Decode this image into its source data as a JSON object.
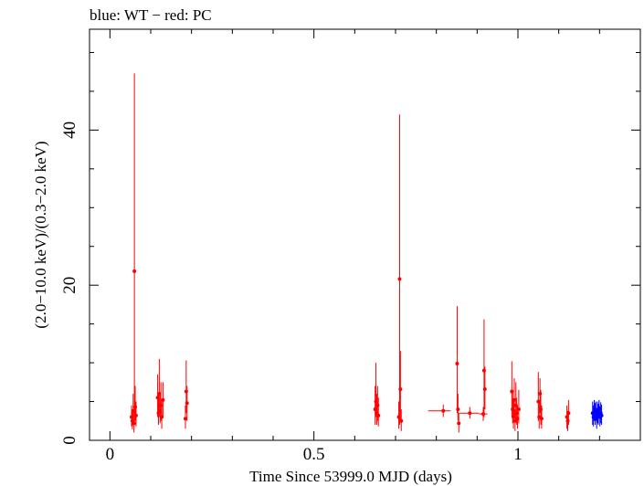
{
  "chart_data": {
    "type": "scatter",
    "title": "blue: WT − red: PC",
    "xlabel": "Time Since 53999.0 MJD (days)",
    "ylabel": "(2.0−10.0 keV)/(0.3−2.0 keV)",
    "xlim": [
      -0.05,
      1.3
    ],
    "ylim": [
      0,
      53
    ],
    "x_ticks": [
      {
        "value": 0,
        "label": "0"
      },
      {
        "value": 0.5,
        "label": "0.5"
      },
      {
        "value": 1,
        "label": "1"
      }
    ],
    "y_ticks": [
      {
        "value": 0,
        "label": "0"
      },
      {
        "value": 20,
        "label": "20"
      },
      {
        "value": 40,
        "label": "40"
      }
    ],
    "grid": false,
    "series": [
      {
        "mode": "PC",
        "color": "#ff0000",
        "points": [
          {
            "x": 0.053,
            "y": 3.0,
            "ylo": 1.8,
            "yhi": 4.5
          },
          {
            "x": 0.055,
            "y": 2.5,
            "ylo": 1.4,
            "yhi": 4.0
          },
          {
            "x": 0.057,
            "y": 3.8,
            "ylo": 2.0,
            "yhi": 6.0
          },
          {
            "x": 0.059,
            "y": 2.2,
            "ylo": 1.0,
            "yhi": 3.6
          },
          {
            "x": 0.06,
            "y": 21.8,
            "ylo": 2.0,
            "yhi": 47.3
          },
          {
            "x": 0.062,
            "y": 4.3,
            "ylo": 2.5,
            "yhi": 7.0
          },
          {
            "x": 0.064,
            "y": 3.2,
            "ylo": 1.8,
            "yhi": 5.0
          },
          {
            "x": 0.117,
            "y": 5.5,
            "ylo": 3.0,
            "yhi": 8.5
          },
          {
            "x": 0.119,
            "y": 3.5,
            "ylo": 2.0,
            "yhi": 6.0
          },
          {
            "x": 0.121,
            "y": 6.0,
            "ylo": 3.0,
            "yhi": 10.5
          },
          {
            "x": 0.123,
            "y": 3.8,
            "ylo": 2.2,
            "yhi": 6.0
          },
          {
            "x": 0.125,
            "y": 4.5,
            "ylo": 2.5,
            "yhi": 7.5
          },
          {
            "x": 0.127,
            "y": 3.0,
            "ylo": 1.5,
            "yhi": 5.0
          },
          {
            "x": 0.13,
            "y": 5.2,
            "ylo": 3.0,
            "yhi": 7.5
          },
          {
            "x": 0.185,
            "y": 2.8,
            "ylo": 1.5,
            "yhi": 4.5
          },
          {
            "x": 0.187,
            "y": 6.3,
            "ylo": 3.5,
            "yhi": 10.3
          },
          {
            "x": 0.189,
            "y": 4.8,
            "ylo": 2.5,
            "yhi": 7.0
          },
          {
            "x": 0.65,
            "y": 4.0,
            "ylo": 2.0,
            "yhi": 7.0
          },
          {
            "x": 0.652,
            "y": 5.0,
            "ylo": 3.0,
            "yhi": 10.0
          },
          {
            "x": 0.654,
            "y": 3.5,
            "ylo": 2.0,
            "yhi": 6.0
          },
          {
            "x": 0.656,
            "y": 4.5,
            "ylo": 2.5,
            "yhi": 7.0
          },
          {
            "x": 0.658,
            "y": 3.2,
            "ylo": 1.8,
            "yhi": 5.5
          },
          {
            "x": 0.708,
            "y": 3.0,
            "ylo": 1.5,
            "yhi": 5.0
          },
          {
            "x": 0.71,
            "y": 20.8,
            "ylo": 2.0,
            "yhi": 42.0
          },
          {
            "x": 0.712,
            "y": 6.6,
            "ylo": 2.5,
            "yhi": 11.5
          },
          {
            "x": 0.714,
            "y": 2.5,
            "ylo": 1.2,
            "yhi": 4.0
          },
          {
            "x": 0.817,
            "y": 3.8,
            "ylo": 3.0,
            "yhi": 4.6,
            "xlo": 0.78,
            "xhi": 0.835
          },
          {
            "x": 0.851,
            "y": 9.9,
            "ylo": 3.5,
            "yhi": 17.3
          },
          {
            "x": 0.853,
            "y": 4.0,
            "ylo": 2.5,
            "yhi": 6.0
          },
          {
            "x": 0.855,
            "y": 2.2,
            "ylo": 1.0,
            "yhi": 3.5
          },
          {
            "x": 0.882,
            "y": 3.5,
            "ylo": 2.8,
            "yhi": 4.3,
            "xlo": 0.855,
            "xhi": 0.905
          },
          {
            "x": 0.915,
            "y": 3.4,
            "ylo": 2.5,
            "yhi": 4.3,
            "xlo": 0.905,
            "xhi": 0.925
          },
          {
            "x": 0.917,
            "y": 9.0,
            "ylo": 3.0,
            "yhi": 15.6
          },
          {
            "x": 0.919,
            "y": 6.6,
            "ylo": 4.0,
            "yhi": 9.5
          },
          {
            "x": 0.985,
            "y": 6.3,
            "ylo": 3.0,
            "yhi": 10.2
          },
          {
            "x": 0.987,
            "y": 4.0,
            "ylo": 2.2,
            "yhi": 6.5
          },
          {
            "x": 0.989,
            "y": 3.0,
            "ylo": 1.5,
            "yhi": 5.0
          },
          {
            "x": 0.991,
            "y": 5.2,
            "ylo": 3.0,
            "yhi": 8.0
          },
          {
            "x": 0.993,
            "y": 2.5,
            "ylo": 1.2,
            "yhi": 4.0
          },
          {
            "x": 0.995,
            "y": 4.5,
            "ylo": 2.5,
            "yhi": 7.5
          },
          {
            "x": 0.997,
            "y": 3.5,
            "ylo": 2.0,
            "yhi": 5.5
          },
          {
            "x": 0.999,
            "y": 2.8,
            "ylo": 1.5,
            "yhi": 4.5
          },
          {
            "x": 1.002,
            "y": 4.0,
            "ylo": 2.2,
            "yhi": 6.5
          },
          {
            "x": 1.05,
            "y": 5.0,
            "ylo": 2.5,
            "yhi": 8.8
          },
          {
            "x": 1.052,
            "y": 3.0,
            "ylo": 1.5,
            "yhi": 5.0
          },
          {
            "x": 1.054,
            "y": 6.0,
            "ylo": 3.5,
            "yhi": 8.0
          },
          {
            "x": 1.056,
            "y": 4.0,
            "ylo": 2.0,
            "yhi": 6.5
          },
          {
            "x": 1.058,
            "y": 2.8,
            "ylo": 1.5,
            "yhi": 4.5
          },
          {
            "x": 1.12,
            "y": 3.0,
            "ylo": 1.5,
            "yhi": 4.5
          },
          {
            "x": 1.122,
            "y": 2.5,
            "ylo": 1.2,
            "yhi": 3.8
          },
          {
            "x": 1.124,
            "y": 3.5,
            "ylo": 2.0,
            "yhi": 5.2
          }
        ]
      },
      {
        "mode": "WT",
        "color": "#0000ff",
        "points": [
          {
            "x": 1.183,
            "y": 3.5,
            "ylo": 2.0,
            "yhi": 5.0
          },
          {
            "x": 1.185,
            "y": 3.0,
            "ylo": 1.8,
            "yhi": 4.5
          },
          {
            "x": 1.187,
            "y": 4.0,
            "ylo": 2.5,
            "yhi": 5.2
          },
          {
            "x": 1.189,
            "y": 3.2,
            "ylo": 2.0,
            "yhi": 4.8
          },
          {
            "x": 1.191,
            "y": 3.8,
            "ylo": 2.5,
            "yhi": 5.0
          },
          {
            "x": 1.193,
            "y": 2.8,
            "ylo": 1.5,
            "yhi": 4.2
          },
          {
            "x": 1.195,
            "y": 3.6,
            "ylo": 2.2,
            "yhi": 5.0
          },
          {
            "x": 1.197,
            "y": 3.3,
            "ylo": 2.0,
            "yhi": 4.7
          },
          {
            "x": 1.199,
            "y": 4.1,
            "ylo": 2.8,
            "yhi": 5.2
          },
          {
            "x": 1.201,
            "y": 3.0,
            "ylo": 1.8,
            "yhi": 4.4
          },
          {
            "x": 1.203,
            "y": 3.5,
            "ylo": 2.2,
            "yhi": 4.9
          },
          {
            "x": 1.205,
            "y": 3.2,
            "ylo": 2.0,
            "yhi": 4.6
          }
        ]
      }
    ]
  }
}
